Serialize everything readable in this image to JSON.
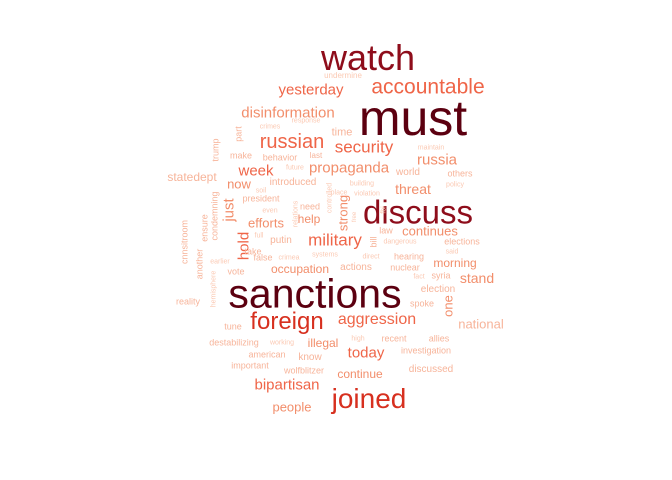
{
  "palette": {
    "darkest": "#5c0010",
    "dark": "#8e0d1b",
    "red": "#d7301f",
    "salmon": "#ef6548",
    "light_salmon": "#f28e6b",
    "pale": "#f7b49a",
    "palest": "#fbc9b3"
  },
  "words": [
    {
      "text": "must",
      "tone": "darkest"
    },
    {
      "text": "sanctions",
      "tone": "darkest"
    },
    {
      "text": "watch",
      "tone": "dark"
    },
    {
      "text": "discuss",
      "tone": "dark"
    },
    {
      "text": "joined",
      "tone": "red"
    },
    {
      "text": "foreign",
      "tone": "red"
    },
    {
      "text": "accountable",
      "tone": "salmon"
    },
    {
      "text": "russian",
      "tone": "salmon"
    },
    {
      "text": "security",
      "tone": "salmon"
    },
    {
      "text": "military",
      "tone": "salmon"
    },
    {
      "text": "aggression",
      "tone": "salmon"
    },
    {
      "text": "yesterday",
      "tone": "salmon"
    },
    {
      "text": "disinformation",
      "tone": "light_salmon"
    },
    {
      "text": "week",
      "tone": "salmon"
    },
    {
      "text": "propaganda",
      "tone": "light_salmon"
    },
    {
      "text": "russia",
      "tone": "light_salmon"
    },
    {
      "text": "today",
      "tone": "salmon"
    },
    {
      "text": "bipartisan",
      "tone": "salmon"
    },
    {
      "text": "hold",
      "tone": "salmon"
    },
    {
      "text": "just",
      "tone": "light_salmon"
    },
    {
      "text": "now",
      "tone": "light_salmon"
    },
    {
      "text": "threat",
      "tone": "light_salmon"
    },
    {
      "text": "continues",
      "tone": "light_salmon"
    },
    {
      "text": "efforts",
      "tone": "light_salmon"
    },
    {
      "text": "occupation",
      "tone": "light_salmon"
    },
    {
      "text": "illegal",
      "tone": "light_salmon"
    },
    {
      "text": "continue",
      "tone": "light_salmon"
    },
    {
      "text": "people",
      "tone": "light_salmon"
    },
    {
      "text": "stand",
      "tone": "light_salmon"
    },
    {
      "text": "national",
      "tone": "pale"
    },
    {
      "text": "morning",
      "tone": "light_salmon"
    },
    {
      "text": "strong",
      "tone": "light_salmon"
    },
    {
      "text": "one",
      "tone": "light_salmon"
    },
    {
      "text": "statedept",
      "tone": "pale"
    },
    {
      "text": "help",
      "tone": "light_salmon"
    },
    {
      "text": "time",
      "tone": "pale"
    },
    {
      "text": "world",
      "tone": "pale"
    },
    {
      "text": "introduced",
      "tone": "pale"
    },
    {
      "text": "putin",
      "tone": "pale"
    },
    {
      "text": "actions",
      "tone": "pale"
    },
    {
      "text": "election",
      "tone": "pale"
    },
    {
      "text": "elections",
      "tone": "pale"
    },
    {
      "text": "hearing",
      "tone": "pale"
    },
    {
      "text": "nuclear",
      "tone": "pale"
    },
    {
      "text": "syria",
      "tone": "pale"
    },
    {
      "text": "spoke",
      "tone": "pale"
    },
    {
      "text": "allies",
      "tone": "pale"
    },
    {
      "text": "recent",
      "tone": "pale"
    },
    {
      "text": "investigation",
      "tone": "pale"
    },
    {
      "text": "discussed",
      "tone": "pale"
    },
    {
      "text": "know",
      "tone": "pale"
    },
    {
      "text": "american",
      "tone": "pale"
    },
    {
      "text": "important",
      "tone": "pale"
    },
    {
      "text": "wolfblitzer",
      "tone": "pale"
    },
    {
      "text": "destabilizing",
      "tone": "pale"
    },
    {
      "text": "working",
      "tone": "palest"
    },
    {
      "text": "high",
      "tone": "palest"
    },
    {
      "text": "tune",
      "tone": "pale"
    },
    {
      "text": "reality",
      "tone": "pale"
    },
    {
      "text": "president",
      "tone": "pale"
    },
    {
      "text": "behavior",
      "tone": "pale"
    },
    {
      "text": "make",
      "tone": "pale"
    },
    {
      "text": "crimes",
      "tone": "palest"
    },
    {
      "text": "part",
      "tone": "pale"
    },
    {
      "text": "trump",
      "tone": "pale"
    },
    {
      "text": "undermine",
      "tone": "palest"
    },
    {
      "text": "response",
      "tone": "palest"
    },
    {
      "text": "last",
      "tone": "pale"
    },
    {
      "text": "maintain",
      "tone": "palest"
    },
    {
      "text": "others",
      "tone": "pale"
    },
    {
      "text": "policy",
      "tone": "palest"
    },
    {
      "text": "said",
      "tone": "palest"
    },
    {
      "text": "fact",
      "tone": "palest"
    },
    {
      "text": "law",
      "tone": "pale"
    },
    {
      "text": "bill",
      "tone": "pale"
    },
    {
      "text": "dangerous",
      "tone": "palest"
    },
    {
      "text": "direct",
      "tone": "palest"
    },
    {
      "text": "systems",
      "tone": "palest"
    },
    {
      "text": "false",
      "tone": "pale"
    },
    {
      "text": "vote",
      "tone": "pale"
    },
    {
      "text": "take",
      "tone": "pale"
    },
    {
      "text": "earlier",
      "tone": "palest"
    },
    {
      "text": "even",
      "tone": "palest"
    },
    {
      "text": "full",
      "tone": "palest"
    },
    {
      "text": "need",
      "tone": "pale"
    },
    {
      "text": "place",
      "tone": "palest"
    },
    {
      "text": "building",
      "tone": "palest"
    },
    {
      "text": "violation",
      "tone": "palest"
    },
    {
      "text": "future",
      "tone": "palest"
    },
    {
      "text": "soil",
      "tone": "palest"
    },
    {
      "text": "crimea",
      "tone": "palest"
    },
    {
      "text": "controlled",
      "tone": "palest"
    },
    {
      "text": "relations",
      "tone": "palest"
    },
    {
      "text": "free",
      "tone": "palest"
    },
    {
      "text": "fbi",
      "tone": "palest"
    },
    {
      "text": "cnnsitroom",
      "tone": "pale"
    },
    {
      "text": "another",
      "tone": "pale"
    },
    {
      "text": "ensure",
      "tone": "pale"
    },
    {
      "text": "condemning",
      "tone": "pale"
    },
    {
      "text": "hemisphere",
      "tone": "palest"
    }
  ]
}
